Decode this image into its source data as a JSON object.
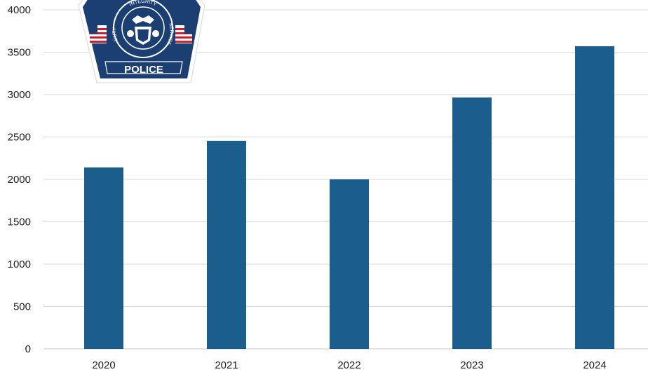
{
  "chart_data": {
    "type": "bar",
    "categories": [
      "2020",
      "2021",
      "2022",
      "2023",
      "2024"
    ],
    "values": [
      2140,
      2455,
      2000,
      2965,
      3570
    ],
    "title": "",
    "xlabel": "",
    "ylabel": "",
    "ylim": [
      0,
      4000
    ],
    "yticks": [
      "0",
      "500",
      "1000",
      "1500",
      "2000",
      "2500",
      "3000",
      "3500",
      "4000"
    ],
    "grid": "horizontal",
    "bar_color": "#1b5e8e"
  },
  "badge": {
    "label": "POLICE",
    "motto_top": "INTEGRITY",
    "motto_left": "DUTY",
    "motto_right": "SERVICE",
    "primary_color": "#1c3f73",
    "accent_color": "#c8202e"
  }
}
